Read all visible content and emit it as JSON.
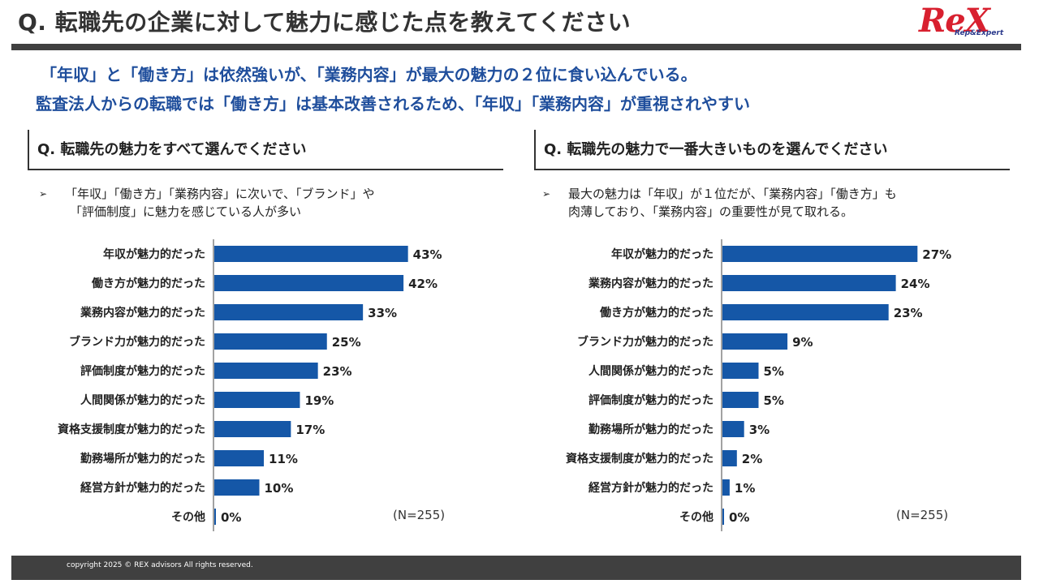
{
  "header": {
    "title": "Q. 転職先の企業に対して魅力に感じた点を教えてください",
    "logo_main": "ReX",
    "logo_sub": "Rep&Expert"
  },
  "headline": {
    "line1": "「年収」と「働き方」は依然強いが、「業務内容」が最大の魅力の２位に食い込んでいる。",
    "line2": "監査法人からの転職では「働き方」は基本改善されるため、「年収」「業務内容」が重視されやすい"
  },
  "left": {
    "question": "Q. 転職先の魅力をすべて選んでください",
    "bullet_line1": "「年収」「働き方」「業務内容」に次いで、「ブランド」や",
    "bullet_line2": "「評価制度」に魅力を感じている人が多い",
    "n_label": "(N=255)"
  },
  "right": {
    "question": "Q. 転職先の魅力で一番大きいものを選んでください",
    "bullet_line1": "最大の魅力は「年収」が１位だが、「業務内容」「働き方」も",
    "bullet_line2": "肉薄しており、「業務内容」の重要性が見て取れる。",
    "n_label": "(N=255)"
  },
  "bullet_mark": "➢",
  "footer": {
    "copyright": "copyright 2025 © REX advisors All rights reserved."
  },
  "colors": {
    "bar": "#1557a7",
    "headline": "#1f4e9c",
    "dark": "#404040"
  },
  "chart_data": [
    {
      "type": "bar",
      "orientation": "horizontal",
      "categories": [
        "年収が魅力的だった",
        "働き方が魅力的だった",
        "業務内容が魅力的だった",
        "ブランド力が魅力的だった",
        "評価制度が魅力的だった",
        "人間関係が魅力的だった",
        "資格支援制度が魅力的だった",
        "勤務場所が魅力的だった",
        "経営方針が魅力的だった",
        "その他"
      ],
      "values": [
        43,
        42,
        33,
        25,
        23,
        19,
        17,
        11,
        10,
        0
      ],
      "value_labels": [
        "43%",
        "42%",
        "33%",
        "25%",
        "23%",
        "19%",
        "17%",
        "11%",
        "10%",
        "0%"
      ],
      "unit": "%"
    },
    {
      "type": "bar",
      "orientation": "horizontal",
      "categories": [
        "年収が魅力的だった",
        "業務内容が魅力的だった",
        "働き方が魅力的だった",
        "ブランド力が魅力的だった",
        "人間関係が魅力的だった",
        "評価制度が魅力的だった",
        "勤務場所が魅力的だった",
        "資格支援制度が魅力的だった",
        "経営方針が魅力的だった",
        "その他"
      ],
      "values": [
        27,
        24,
        23,
        9,
        5,
        5,
        3,
        2,
        1,
        0
      ],
      "value_labels": [
        "27%",
        "24%",
        "23%",
        "9%",
        "5%",
        "5%",
        "3%",
        "2%",
        "1%",
        "0%"
      ],
      "unit": "%"
    }
  ]
}
